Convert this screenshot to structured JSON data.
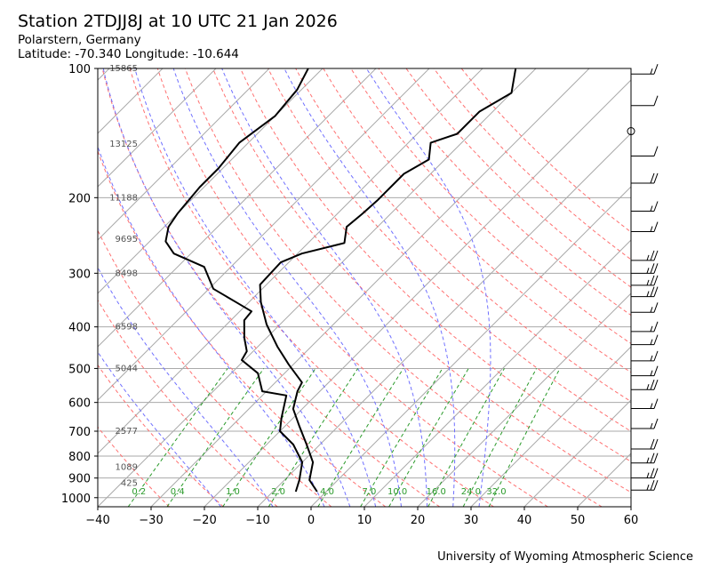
{
  "header": {
    "title": "Station 2TDJJ8J at 10 UTC 21 Jan 2026",
    "location": "Polarstern, Germany",
    "coords": "Latitude: -70.340 Longitude: -10.644"
  },
  "footer": {
    "credit": "University of Wyoming Atmospheric Science"
  },
  "chart_data": {
    "type": "line",
    "subtype": "skew-T log-p",
    "title": "Station 2TDJJ8J at 10 UTC 21 Jan 2026",
    "xlabel": "",
    "ylabel": "",
    "xlim": [
      -40,
      60
    ],
    "ylim": [
      1050,
      100
    ],
    "x_ticks": [
      -40,
      -30,
      -20,
      -10,
      0,
      10,
      20,
      30,
      40,
      50,
      60
    ],
    "y_ticks": [
      100,
      200,
      300,
      400,
      500,
      600,
      700,
      800,
      900,
      1000
    ],
    "height_labels": [
      {
        "p": 100,
        "label": "15865"
      },
      {
        "p": 150,
        "label": "13125"
      },
      {
        "p": 200,
        "label": "11188"
      },
      {
        "p": 250,
        "label": "9695"
      },
      {
        "p": 300,
        "label": "8498"
      },
      {
        "p": 400,
        "label": "6598"
      },
      {
        "p": 500,
        "label": "5044"
      },
      {
        "p": 700,
        "label": "2577"
      },
      {
        "p": 850,
        "label": "1089"
      },
      {
        "p": 925,
        "label": "425"
      }
    ],
    "mixing_ratio_labels": [
      "0.2",
      "0.4",
      "1.0",
      "2.0",
      "4.0",
      "7.0",
      "10.0",
      "16.0",
      "24.0",
      "32.0"
    ],
    "mixing_ratios": [
      0.2,
      0.4,
      1.0,
      2.0,
      4.0,
      7.0,
      10.0,
      16.0,
      24.0,
      32.0
    ],
    "dry_adiabats_C": [
      -30,
      -20,
      -10,
      0,
      10,
      20,
      30,
      40,
      50,
      60,
      70,
      80,
      90,
      100,
      110,
      120,
      130,
      140,
      150
    ],
    "moist_adiabats_C": [
      -20,
      -10,
      0,
      5,
      10,
      15,
      20,
      25,
      30
    ],
    "series": [
      {
        "name": "Temperature",
        "color": "#000000",
        "p": [
          968,
          910,
          827,
          752,
          683,
          621,
          565,
          539,
          490,
          445,
          395,
          350,
          319,
          283,
          270,
          255,
          234,
          218,
          203,
          189,
          176,
          163,
          149,
          142,
          126,
          114,
          100
        ],
        "T": [
          -1.7,
          -5.3,
          -8,
          -12.5,
          -17.2,
          -21.7,
          -24.2,
          -25,
          -30.8,
          -36.3,
          -42.5,
          -47.8,
          -51.2,
          -51.5,
          -49.2,
          -43.2,
          -45.8,
          -45.3,
          -45,
          -45,
          -45,
          -43,
          -45.8,
          -42.5,
          -42.5,
          -40,
          -43.8
        ]
      },
      {
        "name": "Dewpoint",
        "color": "#000000",
        "p": [
          968,
          910,
          827,
          752,
          700,
          652,
          578,
          565,
          513,
          478,
          456,
          424,
          386,
          368,
          350,
          326,
          290,
          270,
          253,
          234,
          218,
          189,
          171,
          149,
          129,
          112,
          100
        ],
        "T": [
          -5.7,
          -7.2,
          -10,
          -15,
          -20,
          -22.2,
          -25.5,
          -30.8,
          -35,
          -40.5,
          -41.2,
          -44.2,
          -47.5,
          -47.8,
          -52.5,
          -59.2,
          -65,
          -73.2,
          -77,
          -79.2,
          -80,
          -80.8,
          -80.8,
          -81.7,
          -80,
          -80.8,
          -82.7
        ]
      }
    ],
    "wind_barbs": [
      {
        "p": 103,
        "speed_kt": 15
      },
      {
        "p": 122,
        "speed_kt": 10
      },
      {
        "p": 140,
        "speed_kt": 0
      },
      {
        "p": 160,
        "speed_kt": 10
      },
      {
        "p": 185,
        "speed_kt": 20
      },
      {
        "p": 215,
        "speed_kt": 15
      },
      {
        "p": 240,
        "speed_kt": 15
      },
      {
        "p": 280,
        "speed_kt": 25
      },
      {
        "p": 300,
        "speed_kt": 25
      },
      {
        "p": 320,
        "speed_kt": 25
      },
      {
        "p": 340,
        "speed_kt": 25
      },
      {
        "p": 370,
        "speed_kt": 15
      },
      {
        "p": 410,
        "speed_kt": 15
      },
      {
        "p": 440,
        "speed_kt": 15
      },
      {
        "p": 480,
        "speed_kt": 15
      },
      {
        "p": 520,
        "speed_kt": 15
      },
      {
        "p": 560,
        "speed_kt": 25
      },
      {
        "p": 620,
        "speed_kt": 15
      },
      {
        "p": 690,
        "speed_kt": 15
      },
      {
        "p": 770,
        "speed_kt": 20
      },
      {
        "p": 830,
        "speed_kt": 25
      },
      {
        "p": 900,
        "speed_kt": 25
      },
      {
        "p": 960,
        "speed_kt": 25
      }
    ],
    "grid": true,
    "colors": {
      "isotherm": "#aaaaaa",
      "dry": "#ff7070",
      "moist": "#7070ff",
      "mixing": "#2a9a2a"
    }
  }
}
